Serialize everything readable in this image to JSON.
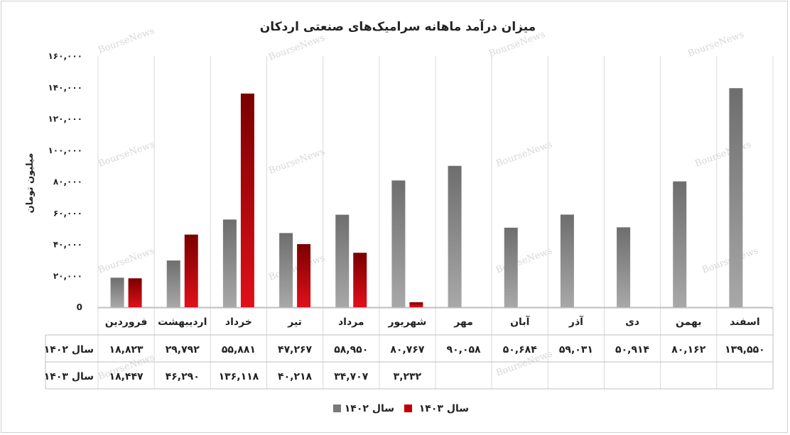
{
  "chart_data": {
    "type": "bar",
    "title": "میزان درآمد ماهانه سرامیک‌های صنعتی اردکان",
    "ylabel": "میلیون تومان",
    "xlabel": "",
    "ylim": [
      0,
      160000
    ],
    "y_ticks": [
      0,
      20000,
      40000,
      60000,
      80000,
      100000,
      120000,
      140000,
      160000
    ],
    "y_tick_labels": [
      "0",
      "۲۰,۰۰۰",
      "۴۰,۰۰۰",
      "۶۰,۰۰۰",
      "۸۰,۰۰۰",
      "۱۰۰,۰۰۰",
      "۱۲۰,۰۰۰",
      "۱۴۰,۰۰۰",
      "۱۶۰,۰۰۰"
    ],
    "grid": "vertical category separators",
    "legend_position": "bottom-center",
    "categories": [
      "فروردین",
      "اردیبهشت",
      "خرداد",
      "تیر",
      "مرداد",
      "شهریور",
      "مهر",
      "آبان",
      "آذر",
      "دی",
      "بهمن",
      "اسفند"
    ],
    "series": [
      {
        "name": "سال ۱۴۰۲",
        "color": "#7a7a7a",
        "values": [
          18823,
          29792,
          55881,
          47267,
          58950,
          80767,
          90058,
          50684,
          59031,
          50914,
          80162,
          139550
        ],
        "labels": [
          "۱۸,۸۲۳",
          "۲۹,۷۹۲",
          "۵۵,۸۸۱",
          "۴۷,۲۶۷",
          "۵۸,۹۵۰",
          "۸۰,۷۶۷",
          "۹۰,۰۵۸",
          "۵۰,۶۸۴",
          "۵۹,۰۳۱",
          "۵۰,۹۱۴",
          "۸۰,۱۶۲",
          "۱۳۹,۵۵۰"
        ]
      },
      {
        "name": "سال ۱۴۰۳",
        "color": "#c00000",
        "values": [
          18447,
          46290,
          136118,
          40218,
          34707,
          3232,
          null,
          null,
          null,
          null,
          null,
          null
        ],
        "labels": [
          "۱۸,۴۴۷",
          "۴۶,۲۹۰",
          "۱۳۶,۱۱۸",
          "۴۰,۲۱۸",
          "۳۴,۷۰۷",
          "۳,۲۳۲",
          "",
          "",
          "",
          "",
          "",
          ""
        ]
      }
    ],
    "data_table": true
  },
  "watermark": "BourseNews"
}
